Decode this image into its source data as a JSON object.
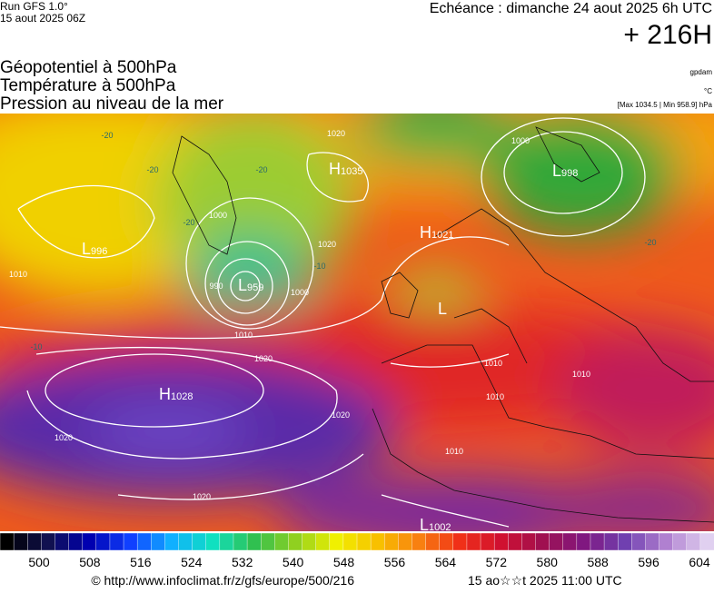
{
  "header": {
    "run": "Run GFS 1.0°",
    "run_date": "15 aout 2025 06Z",
    "valid": "Echéance : dimanche 24 aout 2025 6h UTC",
    "lead": "+ 216H",
    "titles": [
      "Géopotentiel à 500hPa",
      "Température à 500hPa",
      "Pression au niveau de la mer"
    ],
    "units": [
      "gpdam",
      "°C",
      "[Max 1034.5 | Min 958.9] hPa"
    ]
  },
  "map": {
    "centers": [
      {
        "letter": "H",
        "value": "1035"
      },
      {
        "letter": "L",
        "value": "998"
      },
      {
        "letter": "L",
        "value": "996"
      },
      {
        "letter": "H",
        "value": "1021"
      },
      {
        "letter": "L",
        "value": "959"
      },
      {
        "letter": "L"
      },
      {
        "letter": "H",
        "value": "1028"
      },
      {
        "letter": "L",
        "value": "1002"
      }
    ],
    "isobar_labels": [
      "1020",
      "1000",
      "990",
      "1000",
      "1010",
      "1010",
      "1020",
      "1020",
      "1020",
      "1020",
      "1010",
      "1010",
      "1010",
      "1010",
      "1000",
      "1020"
    ],
    "temperature_labels": [
      "-20",
      "-20",
      "-20",
      "-10",
      "-20",
      "-20",
      "-10"
    ]
  },
  "colorbar": {
    "ticks": [
      500,
      508,
      516,
      524,
      532,
      540,
      548,
      556,
      564,
      572,
      580,
      588,
      596,
      604
    ]
  },
  "footer": {
    "source": "© http://www.infoclimat.fr/z/gfs/europe/500/216",
    "generated": "15 ao☆☆t 2025 11:00 UTC"
  }
}
